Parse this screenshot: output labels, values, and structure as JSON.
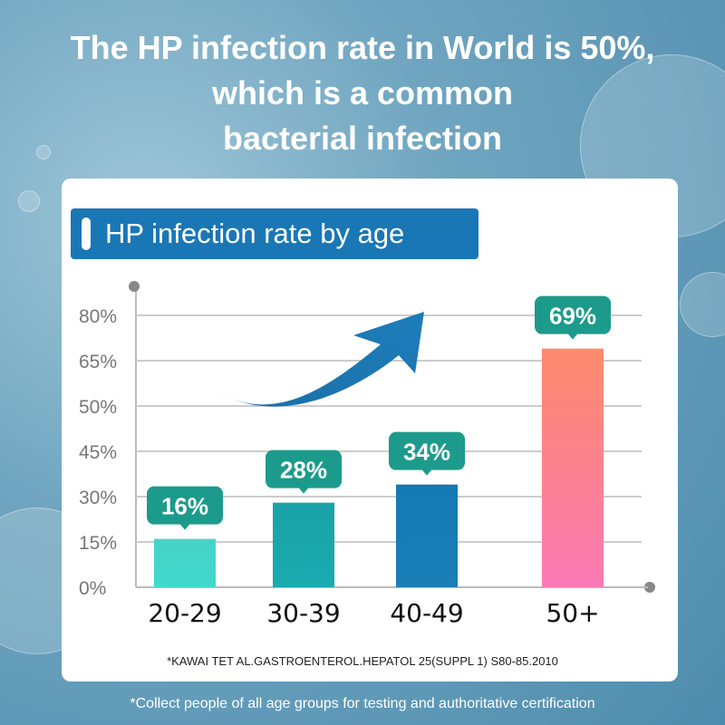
{
  "title_lines": [
    "The HP infection rate in World is 50%,",
    "which is a common",
    "bacterial infection"
  ],
  "header": "HP infection rate by age",
  "citation": "*KAWAI TET AL.GASTROENTEROL.HEPATOL 25(SUPPL 1) S80-85.2010",
  "footer": "*Collect people of all age groups for testing and authoritative certification",
  "chart_data": {
    "type": "bar",
    "title": "HP infection rate by age",
    "categories": [
      "20-29",
      "30-39",
      "40-49",
      "50+"
    ],
    "values": [
      16,
      28,
      34,
      69
    ],
    "value_labels": [
      "16%",
      "28%",
      "34%",
      "69%"
    ],
    "y_ticks": [
      0,
      15,
      30,
      45,
      50,
      65,
      80
    ],
    "y_tick_labels": [
      "0%",
      "15%",
      "30%",
      "45%",
      "50%",
      "65%",
      "80%"
    ],
    "ylim": [
      0,
      80
    ],
    "grid": true,
    "bar_colors": [
      [
        "#3fd9cc",
        "#48d3c8"
      ],
      [
        "#1aabb0",
        "#1aa3a8"
      ],
      [
        "#1a7fb6",
        "#157ab3"
      ],
      [
        "#fb7ab5",
        "#fd8a6c"
      ]
    ],
    "label_color": "#1c9b8c"
  }
}
